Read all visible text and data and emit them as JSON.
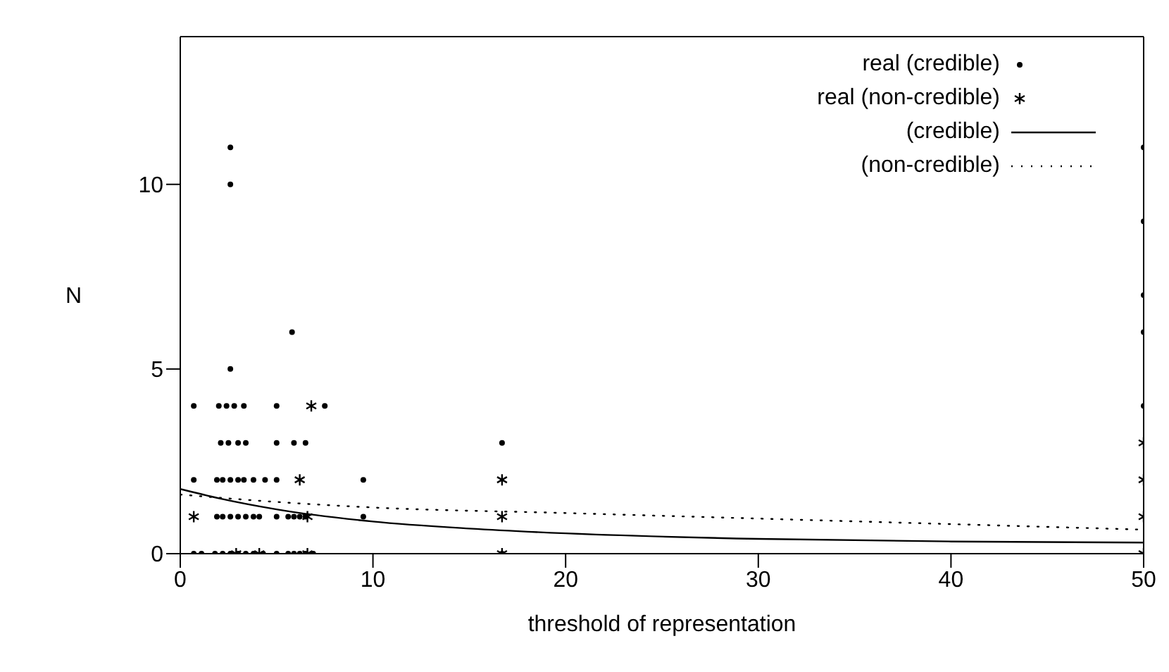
{
  "chart_data": {
    "type": "scatter",
    "xlabel": "threshold of representation",
    "ylabel": "N",
    "xlim": [
      0,
      50
    ],
    "xticks": [
      0,
      10,
      20,
      30,
      40,
      50
    ],
    "ylim": [
      0,
      14
    ],
    "yticks": [
      0,
      5,
      10
    ],
    "legend": "top right",
    "series": [
      {
        "name": "real (credible)",
        "marker": "circle",
        "color": "#000000",
        "x": [
          0.7,
          1.1,
          1.8,
          2.2,
          2.6,
          3.0,
          3.4,
          3.8,
          4.3,
          5.0,
          5.6,
          5.9,
          6.2,
          6.5,
          6.9,
          16.7,
          1.9,
          2.2,
          2.6,
          3.0,
          3.4,
          3.8,
          4.1,
          5.0,
          5.6,
          5.9,
          6.2,
          6.5,
          9.5,
          0.7,
          1.9,
          2.2,
          2.6,
          3.0,
          3.3,
          3.8,
          4.4,
          5.0,
          9.5,
          2.1,
          2.5,
          3.0,
          3.4,
          5.0,
          5.9,
          6.5,
          16.7,
          0.7,
          2.0,
          2.4,
          2.8,
          3.3,
          5.0,
          7.5,
          50,
          2.6,
          5.8,
          50,
          50,
          50,
          2.6,
          2.6,
          50
        ],
        "values": [
          0,
          0,
          0,
          0,
          0,
          0,
          0,
          0,
          0,
          0,
          0,
          0,
          0,
          0,
          0,
          0,
          1,
          1,
          1,
          1,
          1,
          1,
          1,
          1,
          1,
          1,
          1,
          1,
          1,
          2,
          2,
          2,
          2,
          2,
          2,
          2,
          2,
          2,
          2,
          3,
          3,
          3,
          3,
          3,
          3,
          3,
          3,
          4,
          4,
          4,
          4,
          4,
          4,
          4,
          4,
          5,
          6,
          6,
          7,
          9,
          10,
          11,
          11
        ]
      },
      {
        "name": "real (non-credible)",
        "marker": "cross",
        "color": "#000000",
        "x": [
          0.7,
          2.9,
          4.1,
          6.6,
          6.6,
          6.2,
          6.8,
          16.7,
          16.7,
          16.7,
          50,
          50,
          50,
          50
        ],
        "values": [
          1,
          0,
          0,
          0,
          1,
          2,
          4,
          0,
          1,
          2,
          0,
          1,
          2,
          3
        ]
      },
      {
        "name": "(credible)",
        "type": "line",
        "line_style": "solid",
        "color": "#000000",
        "x": [
          0,
          2,
          5,
          10,
          15,
          20,
          30,
          40,
          50
        ],
        "values": [
          1.75,
          1.5,
          1.2,
          0.87,
          0.68,
          0.55,
          0.4,
          0.33,
          0.3
        ]
      },
      {
        "name": "(non-credible)",
        "type": "line",
        "line_style": "dotted",
        "color": "#000000",
        "x": [
          0,
          5,
          10,
          20,
          30,
          40,
          50
        ],
        "values": [
          1.6,
          1.4,
          1.25,
          1.1,
          0.95,
          0.8,
          0.65
        ]
      }
    ]
  }
}
